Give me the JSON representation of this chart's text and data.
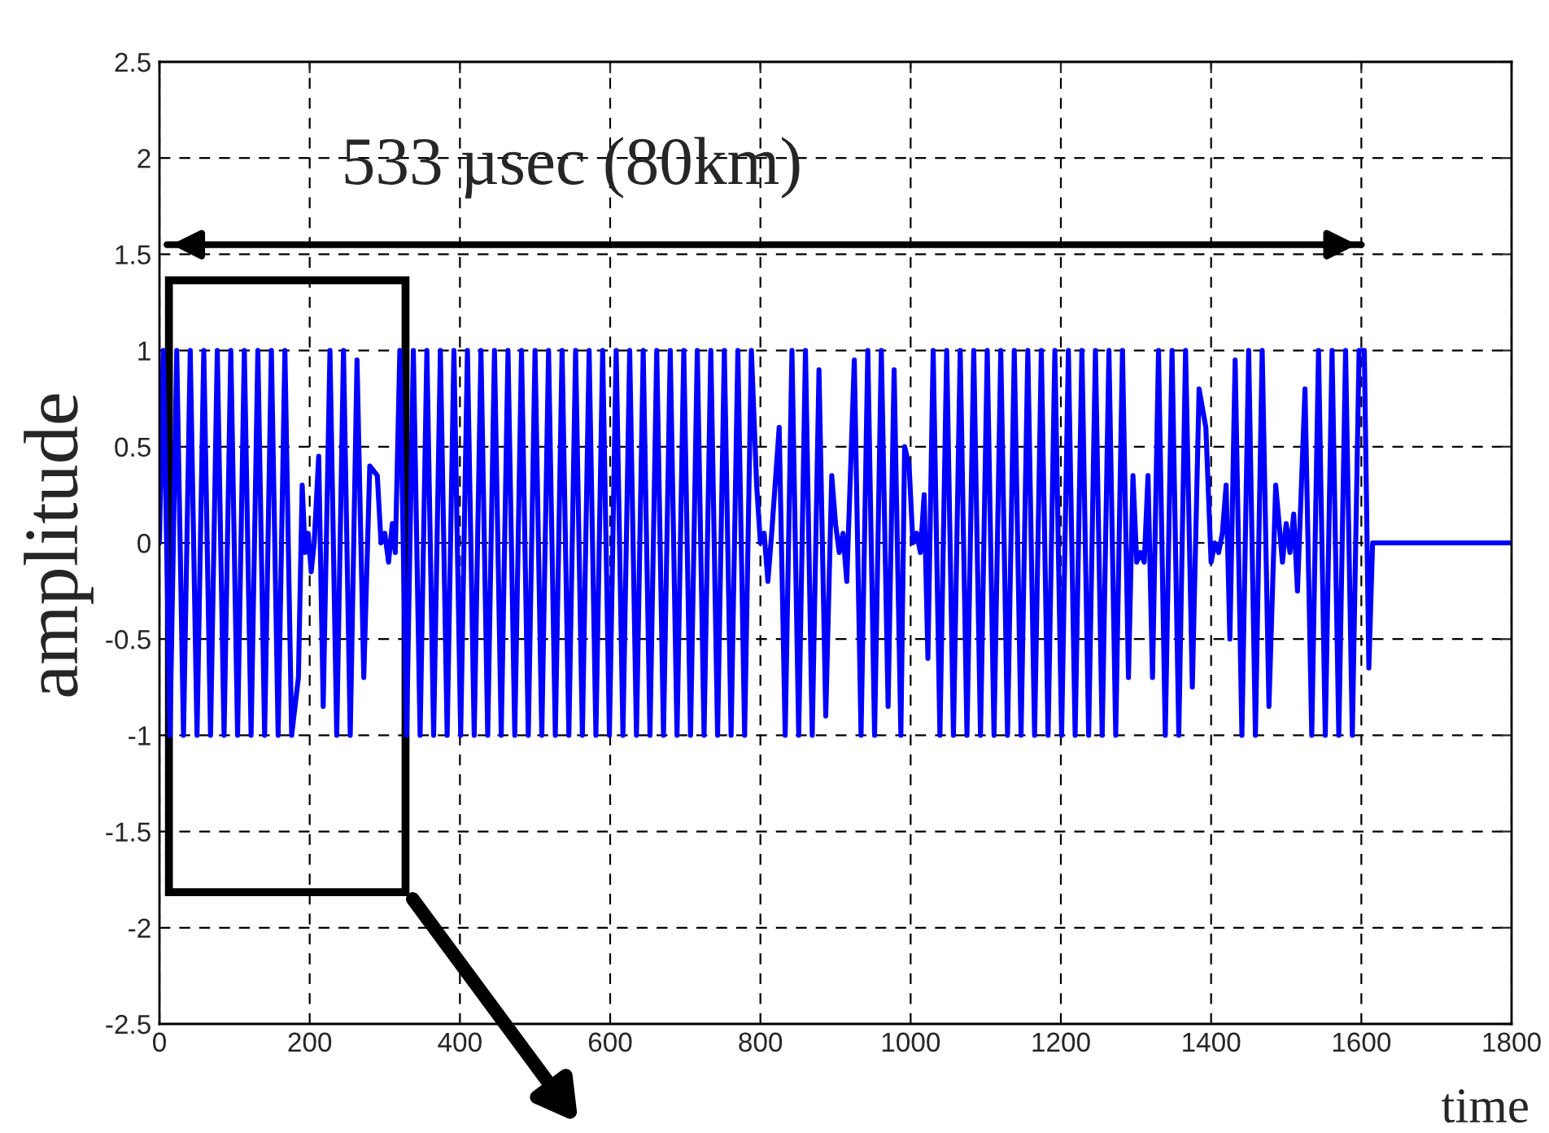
{
  "chart_data": {
    "type": "line",
    "xlabel": "time",
    "ylabel": "amplitude",
    "annotations": [
      "533 µsec (80km)"
    ],
    "xlim": [
      0,
      1800
    ],
    "xticks": [
      0,
      200,
      400,
      600,
      800,
      1000,
      1200,
      1400,
      1600,
      1800
    ],
    "ylim": [
      -2.5,
      2.5
    ],
    "yticks": [
      -2.5,
      -2,
      -1.5,
      -1,
      -0.5,
      0,
      0.5,
      1,
      1.5,
      2,
      2.5
    ],
    "grid": true,
    "line_style": "solid",
    "marker": "none",
    "series": [
      {
        "type": "line",
        "color": "#000000",
        "x": [
          10,
          1600
        ],
        "values": [
          1.55,
          1.55
        ]
      },
      {
        "color": "#0000ff",
        "x": [
          0,
          5,
          14,
          23,
          32,
          41,
          50,
          59,
          68,
          77,
          86,
          95,
          104,
          113,
          122,
          131,
          140,
          149,
          158,
          167,
          176,
          185,
          190,
          194,
          198,
          202,
          206,
          212,
          218,
          227,
          236,
          245,
          254,
          263,
          272,
          280,
          290,
          295,
          300,
          305,
          310,
          314,
          320,
          329,
          338,
          347,
          356,
          365,
          374,
          383,
          392,
          401,
          410,
          419,
          428,
          437,
          446,
          455,
          464,
          473,
          482,
          491,
          500,
          509,
          518,
          527,
          536,
          545,
          554,
          563,
          572,
          581,
          590,
          599,
          608,
          617,
          626,
          635,
          644,
          653,
          662,
          671,
          680,
          689,
          698,
          707,
          716,
          725,
          734,
          743,
          752,
          761,
          770,
          779,
          788,
          795,
          800,
          805,
          810,
          815,
          825,
          833,
          842,
          851,
          860,
          869,
          878,
          887,
          895,
          900,
          905,
          910,
          915,
          925,
          934,
          943,
          952,
          961,
          970,
          978,
          987,
          992,
          998,
          1003,
          1008,
          1013,
          1018,
          1023,
          1030,
          1039,
          1048,
          1057,
          1066,
          1075,
          1084,
          1093,
          1102,
          1111,
          1120,
          1129,
          1138,
          1147,
          1156,
          1165,
          1174,
          1183,
          1192,
          1201,
          1210,
          1219,
          1228,
          1237,
          1246,
          1255,
          1264,
          1273,
          1282,
          1290,
          1296,
          1301,
          1306,
          1311,
          1316,
          1322,
          1330,
          1339,
          1348,
          1357,
          1366,
          1375,
          1384,
          1393,
          1400,
          1405,
          1410,
          1415,
          1420,
          1425,
          1432,
          1441,
          1450,
          1459,
          1468,
          1477,
          1486,
          1495,
          1500,
          1505,
          1510,
          1515,
          1525,
          1534,
          1543,
          1552,
          1561,
          1570,
          1579,
          1588,
          1597,
          1604,
          1610,
          1615,
          1800
        ],
        "values": [
          0,
          1,
          -1,
          1,
          -1,
          1,
          -1,
          1,
          -1,
          1,
          -1,
          1,
          -1,
          1,
          -1,
          1,
          -1,
          1,
          -1,
          1,
          -1,
          -0.7,
          0.3,
          -0.05,
          0.05,
          -0.15,
          0,
          0.45,
          -0.85,
          1,
          -1,
          1,
          -1,
          0.95,
          -0.7,
          0.4,
          0.35,
          0,
          0.05,
          -0.1,
          0.1,
          -0.05,
          1,
          -1,
          1,
          -1,
          1,
          -1,
          1,
          -1,
          1,
          -1,
          1,
          -1,
          1,
          -1,
          1,
          -1,
          1,
          -1,
          1,
          -1,
          1,
          -1,
          1,
          -1,
          1,
          -1,
          1,
          -1,
          1,
          -1,
          1,
          -1,
          1,
          -1,
          1,
          -1,
          1,
          -1,
          1,
          -1,
          1,
          -1,
          1,
          -1,
          1,
          -1,
          1,
          -1,
          1,
          -1,
          1,
          -1,
          1,
          0.3,
          0,
          0.05,
          -0.2,
          0.05,
          0.6,
          -1,
          1,
          -1,
          1,
          -1,
          0.9,
          -0.9,
          0.35,
          0.1,
          -0.05,
          0.05,
          -0.2,
          0.95,
          -1,
          1,
          -1,
          1,
          -0.85,
          0.9,
          -1,
          0.5,
          0.4,
          0,
          0.05,
          -0.05,
          0.25,
          -0.6,
          1,
          -1,
          1,
          -1,
          1,
          -1,
          1,
          -1,
          1,
          -1,
          1,
          -1,
          1,
          -1,
          1,
          -1,
          1,
          -1,
          1,
          -1,
          1,
          -1,
          1,
          -1,
          1,
          -1,
          1,
          -1,
          1,
          -0.7,
          0.35,
          -0.1,
          -0.05,
          -0.1,
          0.35,
          -0.7,
          1,
          -1,
          1,
          -1,
          1,
          -0.75,
          0.8,
          0.6,
          -0.1,
          0,
          -0.05,
          0.05,
          0.3,
          -0.5,
          0.95,
          -1,
          1,
          -1,
          1,
          -0.85,
          0.3,
          -0.1,
          0.1,
          -0.05,
          0.15,
          -0.25,
          0.8,
          -1,
          1,
          -1,
          1,
          -1,
          1,
          -1,
          1,
          1,
          -0.65,
          0,
          0
        ]
      }
    ]
  }
}
